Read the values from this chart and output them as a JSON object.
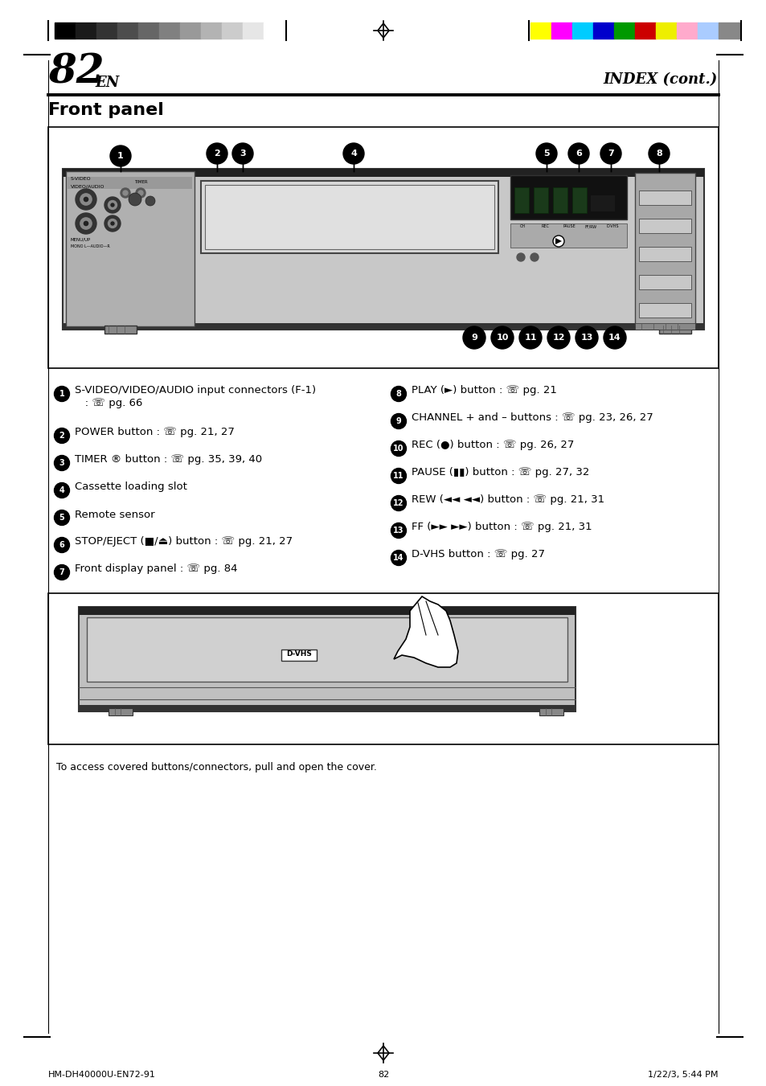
{
  "page_number": "82",
  "page_suffix": "EN",
  "header_right": "INDEX (cont.)",
  "section_title": "Front panel",
  "grayscale_colors": [
    "#000000",
    "#1a1a1a",
    "#333333",
    "#4d4d4d",
    "#666666",
    "#808080",
    "#999999",
    "#b3b3b3",
    "#cccccc",
    "#e6e6e6",
    "#ffffff"
  ],
  "color_bars": [
    "#ffff00",
    "#ff00ff",
    "#00ccff",
    "#0000cc",
    "#009900",
    "#cc0000",
    "#eeee00",
    "#ffaacc",
    "#aaccff",
    "#888888"
  ],
  "footer_left": "HM-DH40000U-EN72-91",
  "footer_center": "82",
  "footer_right": "1/22/3, 5:44 PM",
  "left_col": [
    "S-VIDEO/VIDEO/AUDIO input connectors (F-1)\n   : ☏ pg. 66",
    "POWER button : ☏ pg. 21, 27",
    "TIMER ® button : ☏ pg. 35, 39, 40",
    "Cassette loading slot",
    "Remote sensor",
    "STOP/EJECT (■/⏏) button : ☏ pg. 21, 27",
    "Front display panel : ☏ pg. 84"
  ],
  "right_col": [
    "PLAY (►) button : ☏ pg. 21",
    "CHANNEL + and – buttons : ☏ pg. 23, 26, 27",
    "REC (●) button : ☏ pg. 26, 27",
    "PAUSE (▮▮) button : ☏ pg. 27, 32",
    "REW (◄◄ ◄◄) button : ☏ pg. 21, 31",
    "FF (►► ►►) button : ☏ pg. 21, 31",
    "D-VHS button : ☏ pg. 27"
  ],
  "cover_caption": "To access covered buttons/connectors, pull and open the cover.",
  "bg_color": "#ffffff"
}
